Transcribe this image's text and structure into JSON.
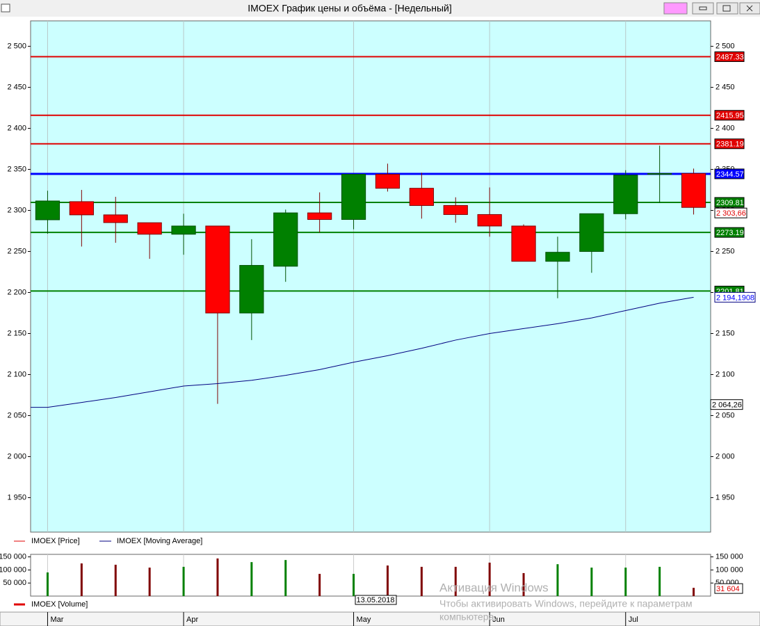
{
  "window": {
    "title": "IMOEX График цены и объёма - [Недельный]"
  },
  "watermark": {
    "title": "Активация Windows",
    "lines": [
      "Чтобы активировать Windows, перейдите к параметрам",
      "компьютера."
    ]
  },
  "chart_data": [
    {
      "type": "candlestick",
      "name": "IMOEX [Price]",
      "color": "#e00000",
      "categories": [
        "Mar",
        null,
        null,
        null,
        "Apr",
        null,
        null,
        null,
        null,
        "May",
        null,
        null,
        null,
        "Jun",
        null,
        null,
        null,
        "Jul",
        null,
        null
      ],
      "open": [
        2288.6,
        2310.7,
        2294.6,
        2285,
        2271,
        2281,
        2175,
        2232,
        2297,
        2289,
        2344,
        2327,
        2306,
        2295,
        2281,
        2238,
        2250,
        2296,
        2344,
        2345
      ],
      "high": [
        2324,
        2325,
        2316.6,
        2285,
        2296,
        2281,
        2265,
        2301,
        2322,
        2344,
        2357,
        2346,
        2316,
        2328,
        2283,
        2268,
        2296,
        2349,
        2379,
        2351
      ],
      "low": [
        2271.6,
        2256,
        2260.6,
        2241,
        2246,
        2064.26,
        2142,
        2213,
        2273,
        2277,
        2323,
        2290,
        2285,
        2268,
        2238,
        2193,
        2224,
        2289,
        2309,
        2295
      ],
      "close": [
        2311.5,
        2294.6,
        2285.2,
        2271,
        2281,
        2175,
        2233,
        2297,
        2289,
        2344,
        2327,
        2306,
        2295,
        2281,
        2238,
        2249,
        2296,
        2343,
        2345,
        2303.66
      ],
      "close_labels": [
        null,
        null,
        null,
        null,
        null,
        null,
        null,
        null,
        null,
        null,
        null,
        null,
        null,
        null,
        null,
        null,
        null,
        null,
        null,
        "2 303,66"
      ],
      "low_labels": [
        null,
        null,
        null,
        null,
        null,
        "2 064,26",
        null,
        null,
        null,
        null,
        null,
        null,
        null,
        null,
        null,
        null,
        null,
        null,
        null,
        null
      ],
      "up_color": "#008000",
      "down_color": "#ff0000",
      "ylim": [
        1908,
        2531
      ],
      "yticks": [
        {
          "value": 1950,
          "label": "1 950"
        },
        {
          "value": 2000,
          "label": "2 000"
        },
        {
          "value": 2050,
          "label": "2 050"
        },
        {
          "value": 2100,
          "label": "2 100"
        },
        {
          "value": 2150,
          "label": "2 150"
        },
        {
          "value": 2200,
          "label": "2 200"
        },
        {
          "value": 2250,
          "label": "2 250"
        },
        {
          "value": 2300,
          "label": "2 300"
        },
        {
          "value": 2350,
          "label": "2 350"
        },
        {
          "value": 2400,
          "label": "2 400"
        },
        {
          "value": 2450,
          "label": "2 450"
        },
        {
          "value": 2500,
          "label": "2 500"
        }
      ],
      "levels": [
        {
          "value": 2487.33,
          "color": "#e00000"
        },
        {
          "value": 2415.95,
          "color": "#e00000"
        },
        {
          "value": 2381.19,
          "color": "#e00000"
        },
        {
          "value": 2344.57,
          "color": "#0000ff"
        },
        {
          "value": 2309.81,
          "color": "#008000"
        },
        {
          "value": 2273.19,
          "color": "#008000"
        },
        {
          "value": 2201.81,
          "color": "#008000"
        }
      ],
      "series": [
        {
          "name": "IMOEX [Moving Average]",
          "color": "#000080",
          "values": [
            2060,
            2066,
            2072,
            2079,
            2086,
            2089,
            2093,
            2099,
            2106,
            2115,
            2123,
            2132,
            2142,
            2150,
            2156,
            2162,
            2169,
            2178,
            2187,
            2194.1908
          ],
          "value_labels": [
            null,
            null,
            null,
            null,
            null,
            null,
            null,
            null,
            null,
            null,
            null,
            null,
            null,
            null,
            null,
            null,
            null,
            null,
            null,
            "2 194,1908"
          ]
        }
      ],
      "grid": true
    },
    {
      "type": "bar",
      "name": "IMOEX [Volume]",
      "color": "#e00000",
      "values": [
        90500,
        125000,
        120000,
        109000,
        112000,
        144000,
        130000,
        138000,
        85000,
        85000,
        117000,
        112000,
        112000,
        128000,
        88000,
        122000,
        109000,
        109000,
        112000,
        31604
      ],
      "value_labels": [
        null,
        null,
        null,
        null,
        null,
        null,
        null,
        null,
        null,
        null,
        null,
        null,
        null,
        null,
        null,
        null,
        null,
        null,
        null,
        "31 604"
      ],
      "colors": [
        "#008000",
        "#800000",
        "#800000",
        "#800000",
        "#008000",
        "#800000",
        "#008000",
        "#008000",
        "#800000",
        "#008000",
        "#800000",
        "#800000",
        "#800000",
        "#800000",
        "#800000",
        "#008000",
        "#008000",
        "#008000",
        "#008000",
        "#800000"
      ],
      "ylim": [
        0,
        165000
      ],
      "yticks": [
        {
          "value": 50000,
          "label": "50 000"
        },
        {
          "value": 100000,
          "label": "100 000"
        },
        {
          "value": 150000,
          "label": "150 000"
        }
      ],
      "annotation": "13.05.2018"
    }
  ]
}
